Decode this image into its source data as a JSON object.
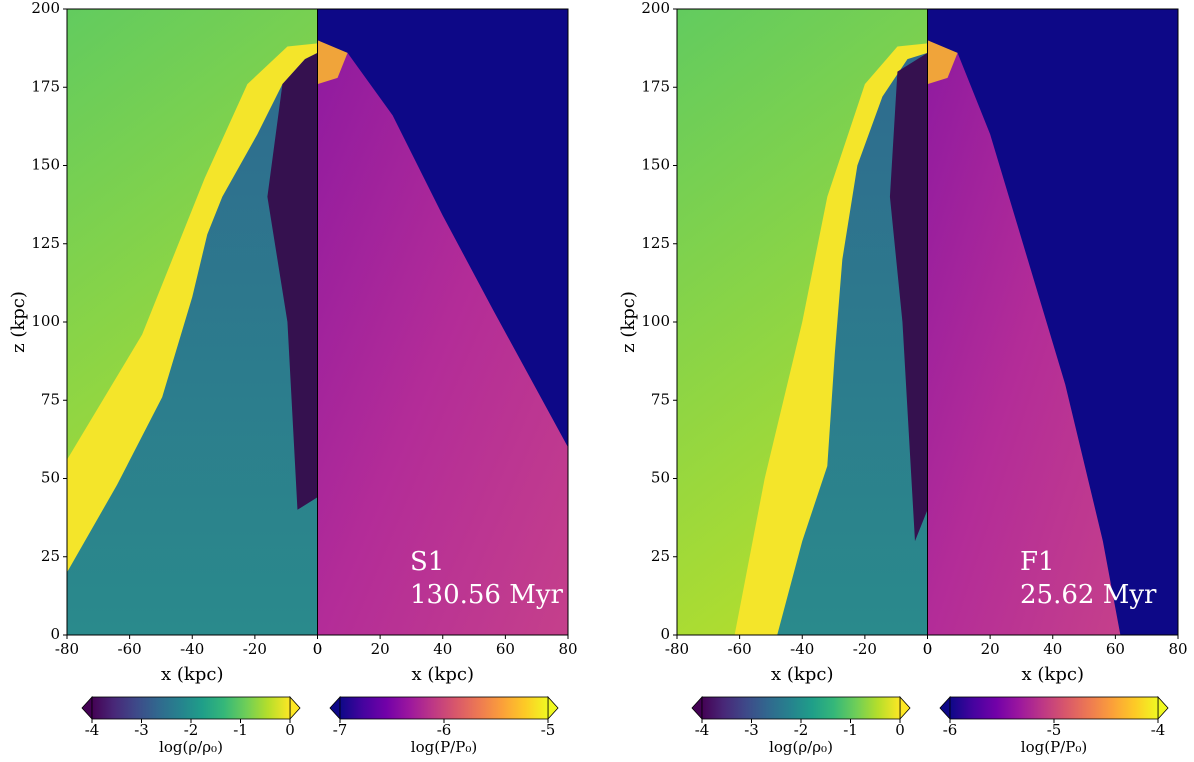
{
  "chart_data": [
    {
      "type": "split-image",
      "ylabel": "z (kpc)",
      "ylim": [
        0,
        200
      ],
      "yticks": [
        0,
        25,
        50,
        75,
        100,
        125,
        150,
        175,
        200
      ],
      "annotations": [
        "S1",
        "130.56 Myr"
      ],
      "halves": [
        {
          "xlabel": "x (kpc)",
          "xlim": [
            -80,
            0
          ],
          "xticks": [
            -80,
            -60,
            -40,
            -20,
            0
          ],
          "colorbar": {
            "label": "log(ρ/ρ₀)",
            "lim": [
              -4,
              0
            ],
            "ticks": [
              -4,
              -3,
              -2,
              -1,
              0
            ],
            "colormap": "viridis"
          }
        },
        {
          "xlabel": "x (kpc)",
          "xlim": [
            0,
            80
          ],
          "xticks": [
            0,
            20,
            40,
            60,
            80
          ],
          "colorbar": {
            "label": "log(P/P₀)",
            "lim": [
              -7,
              -5
            ],
            "ticks": [
              -7,
              -6,
              -5
            ],
            "colormap": "plasma"
          }
        }
      ]
    },
    {
      "type": "split-image",
      "ylabel": "z (kpc)",
      "ylim": [
        0,
        200
      ],
      "yticks": [
        0,
        25,
        50,
        75,
        100,
        125,
        150,
        175,
        200
      ],
      "annotations": [
        "F1",
        "25.62 Myr"
      ],
      "halves": [
        {
          "xlabel": "x (kpc)",
          "xlim": [
            -80,
            0
          ],
          "xticks": [
            -80,
            -60,
            -40,
            -20,
            0
          ],
          "colorbar": {
            "label": "log(ρ/ρ₀)",
            "lim": [
              -4,
              0
            ],
            "ticks": [
              -4,
              -3,
              -2,
              -1,
              0
            ],
            "colormap": "viridis"
          }
        },
        {
          "xlabel": "x (kpc)",
          "xlim": [
            0,
            80
          ],
          "xticks": [
            0,
            20,
            40,
            60,
            80
          ],
          "colorbar": {
            "label": "log(P/P₀)",
            "lim": [
              -6,
              -4
            ],
            "ticks": [
              -6,
              -5,
              -4
            ],
            "colormap": "plasma"
          }
        }
      ]
    }
  ]
}
